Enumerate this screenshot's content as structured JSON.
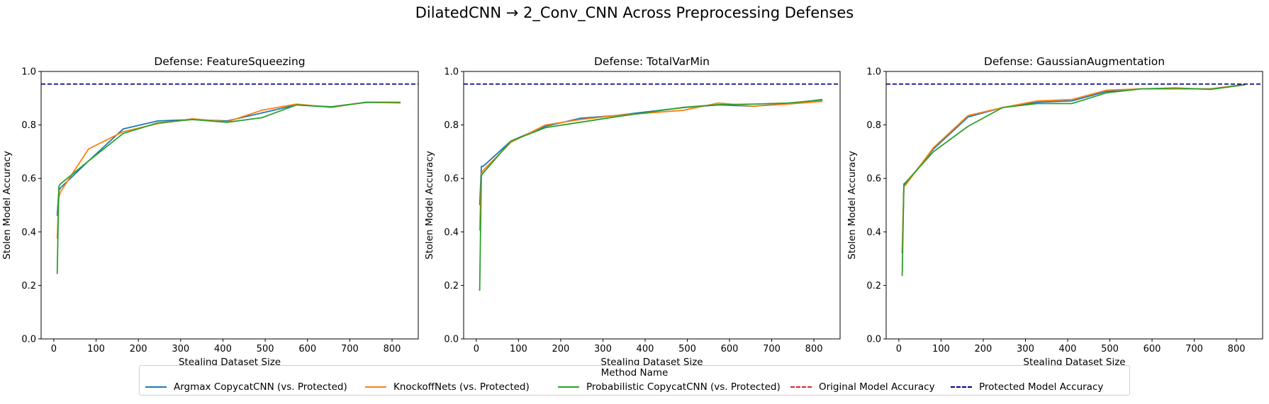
{
  "figure": {
    "suptitle": "DilatedCNN → 2_Conv_CNN Across Preprocessing Defenses"
  },
  "colors": {
    "argmax": "#1f77b4",
    "knockoff": "#ff7f0e",
    "probabilistic": "#2ca02c",
    "original": "#d62728",
    "protected": "#00008b"
  },
  "legend": {
    "title": "Method Name",
    "items": [
      {
        "label": "Argmax CopycatCNN (vs. Protected)",
        "color": "#1f77b4",
        "dashed": false
      },
      {
        "label": "KnockoffNets (vs. Protected)",
        "color": "#ff7f0e",
        "dashed": false
      },
      {
        "label": "Probabilistic CopycatCNN (vs. Protected)",
        "color": "#2ca02c",
        "dashed": false
      },
      {
        "label": "Original Model Accuracy",
        "color": "#d62728",
        "dashed": true
      },
      {
        "label": "Protected Model Accuracy",
        "color": "#00008b",
        "dashed": true
      }
    ]
  },
  "chart_data": [
    {
      "type": "line",
      "title": "Defense: FeatureSqueezing",
      "xlabel": "Stealing Dataset Size",
      "ylabel": "Stolen Model Accuracy",
      "xlim": [
        -30,
        862
      ],
      "ylim": [
        0.0,
        1.0
      ],
      "xticks": [
        0,
        100,
        200,
        300,
        400,
        500,
        600,
        700,
        800
      ],
      "yticks": [
        0.0,
        0.2,
        0.4,
        0.6,
        0.8,
        1.0
      ],
      "ytick_labels": [
        "0.0",
        "0.2",
        "0.4",
        "0.6",
        "0.8",
        "1.0"
      ],
      "hlines": [
        {
          "name": "Protected Model Accuracy",
          "y": 0.953,
          "color": "#00008b"
        }
      ],
      "series": [
        {
          "name": "Argmax CopycatCNN (vs. Protected)",
          "color": "#1f77b4",
          "x": [
            8,
            12,
            16,
            82,
            164,
            246,
            328,
            410,
            492,
            574,
            656,
            738,
            820
          ],
          "y": [
            0.46,
            0.555,
            0.565,
            0.665,
            0.785,
            0.815,
            0.82,
            0.815,
            0.845,
            0.875,
            0.868,
            0.884,
            0.884
          ]
        },
        {
          "name": "KnockoffNets (vs. Protected)",
          "color": "#ff7f0e",
          "x": [
            8,
            12,
            16,
            82,
            164,
            246,
            328,
            410,
            492,
            574,
            656,
            738,
            820
          ],
          "y": [
            0.375,
            0.53,
            0.55,
            0.71,
            0.775,
            0.805,
            0.823,
            0.812,
            0.855,
            0.878,
            0.866,
            0.885,
            0.882
          ]
        },
        {
          "name": "Probabilistic CopycatCNN (vs. Protected)",
          "color": "#2ca02c",
          "x": [
            8,
            12,
            16,
            82,
            164,
            246,
            328,
            410,
            492,
            574,
            656,
            738,
            820
          ],
          "y": [
            0.243,
            0.57,
            0.58,
            0.665,
            0.768,
            0.808,
            0.82,
            0.81,
            0.827,
            0.875,
            0.867,
            0.885,
            0.885
          ]
        }
      ]
    },
    {
      "type": "line",
      "title": "Defense: TotalVarMin",
      "xlabel": "Stealing Dataset Size",
      "ylabel": "Stolen Model Accuracy",
      "xlim": [
        -30,
        862
      ],
      "ylim": [
        0.0,
        1.0
      ],
      "xticks": [
        0,
        100,
        200,
        300,
        400,
        500,
        600,
        700,
        800
      ],
      "yticks": [
        0.0,
        0.2,
        0.4,
        0.6,
        0.8,
        1.0
      ],
      "ytick_labels": [
        "0.0",
        "0.2",
        "0.4",
        "0.6",
        "0.8",
        "1.0"
      ],
      "hlines": [
        {
          "name": "Protected Model Accuracy",
          "y": 0.953,
          "color": "#00008b"
        }
      ],
      "series": [
        {
          "name": "Argmax CopycatCNN (vs. Protected)",
          "color": "#1f77b4",
          "x": [
            8,
            12,
            16,
            82,
            164,
            246,
            328,
            410,
            492,
            574,
            656,
            738,
            820
          ],
          "y": [
            0.5,
            0.645,
            0.645,
            0.74,
            0.795,
            0.825,
            0.835,
            0.85,
            0.865,
            0.875,
            0.87,
            0.88,
            0.895
          ]
        },
        {
          "name": "KnockoffNets (vs. Protected)",
          "color": "#ff7f0e",
          "x": [
            8,
            12,
            16,
            82,
            164,
            246,
            328,
            410,
            492,
            574,
            656,
            738,
            820
          ],
          "y": [
            0.405,
            0.62,
            0.63,
            0.735,
            0.8,
            0.82,
            0.835,
            0.845,
            0.855,
            0.882,
            0.87,
            0.878,
            0.888
          ]
        },
        {
          "name": "Probabilistic CopycatCNN (vs. Protected)",
          "color": "#2ca02c",
          "x": [
            8,
            12,
            16,
            82,
            164,
            246,
            328,
            410,
            492,
            574,
            656,
            738,
            820
          ],
          "y": [
            0.18,
            0.61,
            0.62,
            0.74,
            0.79,
            0.81,
            0.83,
            0.848,
            0.866,
            0.876,
            0.878,
            0.882,
            0.893
          ]
        }
      ]
    },
    {
      "type": "line",
      "title": "Defense: GaussianAugmentation",
      "xlabel": "Stealing Dataset Size",
      "ylabel": "Stolen Model Accuracy",
      "xlim": [
        -30,
        862
      ],
      "ylim": [
        0.0,
        1.0
      ],
      "xticks": [
        0,
        100,
        200,
        300,
        400,
        500,
        600,
        700,
        800
      ],
      "yticks": [
        0.0,
        0.2,
        0.4,
        0.6,
        0.8,
        1.0
      ],
      "ytick_labels": [
        "0.0",
        "0.2",
        "0.4",
        "0.6",
        "0.8",
        "1.0"
      ],
      "hlines": [
        {
          "name": "Protected Model Accuracy",
          "y": 0.953,
          "color": "#00008b"
        }
      ],
      "series": [
        {
          "name": "Argmax CopycatCNN (vs. Protected)",
          "color": "#1f77b4",
          "x": [
            8,
            12,
            16,
            82,
            164,
            246,
            328,
            410,
            492,
            574,
            656,
            738,
            820
          ],
          "y": [
            0.32,
            0.575,
            0.58,
            0.71,
            0.83,
            0.865,
            0.885,
            0.89,
            0.925,
            0.935,
            0.935,
            0.935,
            0.95
          ]
        },
        {
          "name": "KnockoffNets (vs. Protected)",
          "color": "#ff7f0e",
          "x": [
            8,
            12,
            16,
            82,
            164,
            246,
            328,
            410,
            492,
            574,
            656,
            738,
            820
          ],
          "y": [
            0.33,
            0.57,
            0.575,
            0.715,
            0.835,
            0.865,
            0.89,
            0.895,
            0.93,
            0.935,
            0.936,
            0.935,
            0.952
          ]
        },
        {
          "name": "Probabilistic CopycatCNN (vs. Protected)",
          "color": "#2ca02c",
          "x": [
            8,
            12,
            16,
            82,
            164,
            246,
            328,
            410,
            492,
            574,
            656,
            738,
            820
          ],
          "y": [
            0.235,
            0.58,
            0.585,
            0.7,
            0.795,
            0.865,
            0.88,
            0.88,
            0.92,
            0.935,
            0.938,
            0.933,
            0.95
          ]
        }
      ]
    }
  ]
}
